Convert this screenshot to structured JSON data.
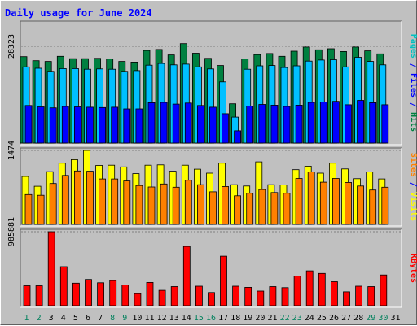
{
  "chart_data": {
    "type": "bar",
    "title": "Daily usage for June 2024",
    "categories": [
      "1",
      "2",
      "3",
      "4",
      "5",
      "6",
      "7",
      "8",
      "9",
      "10",
      "11",
      "12",
      "13",
      "14",
      "15",
      "16",
      "17",
      "18",
      "19",
      "20",
      "21",
      "22",
      "23",
      "24",
      "25",
      "26",
      "27",
      "28",
      "29",
      "30",
      "31"
    ],
    "weekend_days": [
      "1",
      "2",
      "8",
      "9",
      "15",
      "16",
      "22",
      "23",
      "29",
      "30"
    ],
    "panels": [
      {
        "id": "hits-panel",
        "max_label": "28323",
        "max_value": 28323,
        "axis_label": [
          {
            "text": "Pages",
            "color": "#00c0c0"
          },
          {
            "text": " / ",
            "color": "#0000ff"
          },
          {
            "text": "Files",
            "color": "#0000ff"
          },
          {
            "text": " / ",
            "color": "#0000ff"
          },
          {
            "text": "Hits",
            "color": "#008040"
          }
        ],
        "series": [
          {
            "name": "Hits",
            "color": "#008040",
            "values": [
              25300,
              24100,
              23900,
              25400,
              24700,
              24700,
              24800,
              24600,
              23900,
              23700,
              27100,
              27400,
              25800,
              29100,
              26300,
              24800,
              22700,
              11500,
              24600,
              25900,
              26200,
              25400,
              26900,
              28100,
              27300,
              27600,
              26800,
              28100,
              27000,
              26100,
              0
            ]
          },
          {
            "name": "Files",
            "color": "#00c0ff",
            "values": [
              22300,
              21900,
              21000,
              21800,
              21800,
              21600,
              21700,
              21600,
              21000,
              21200,
              22800,
              23300,
              22900,
              23100,
              22300,
              21700,
              17900,
              7600,
              21600,
              22600,
              22700,
              22100,
              22600,
              24000,
              24300,
              24400,
              22300,
              25100,
              23900,
              22900,
              0
            ]
          },
          {
            "name": "Pages",
            "color": "#0000ff",
            "values": [
              11000,
              10600,
              10300,
              10700,
              10600,
              10500,
              10400,
              10500,
              10000,
              10000,
              11800,
              11900,
              11400,
              11700,
              11000,
              10500,
              8600,
              3600,
              10800,
              11300,
              11100,
              10700,
              11100,
              11900,
              12000,
              12200,
              11200,
              12500,
              11800,
              11200,
              0
            ]
          }
        ]
      },
      {
        "id": "visits-panel",
        "max_label": "1474",
        "max_value": 1474,
        "axis_label": [
          {
            "text": "Sites",
            "color": "#ff8000"
          },
          {
            "text": " / ",
            "color": "#0000ff"
          },
          {
            "text": "Visits",
            "color": "#ffff00"
          }
        ],
        "series": [
          {
            "name": "Visits",
            "color": "#ffff00",
            "values": [
              955,
              760,
              1050,
              1220,
              1290,
              1474,
              1175,
              1180,
              1145,
              1010,
              1180,
              1185,
              1060,
              1180,
              1100,
              1020,
              1220,
              790,
              765,
              1245,
              790,
              785,
              1090,
              1160,
              1020,
              1220,
              1105,
              910,
              1045,
              905,
              0
            ]
          },
          {
            "name": "Sites",
            "color": "#ff8000",
            "values": [
              595,
              580,
              815,
              975,
              1065,
              1060,
              905,
              905,
              865,
              775,
              745,
              805,
              740,
              880,
              790,
              650,
              755,
              570,
              620,
              695,
              635,
              620,
              915,
              1045,
              840,
              915,
              835,
              765,
              685,
              740,
              0
            ]
          }
        ]
      },
      {
        "id": "kbytes-panel",
        "max_label": "985881",
        "max_value": 985881,
        "axis_label": [
          {
            "text": "KBytes",
            "color": "#ff0000"
          }
        ],
        "series": [
          {
            "name": "KBytes",
            "color": "#ff0000",
            "values": [
              265000,
              265000,
              985881,
              520000,
              300000,
              350000,
              305000,
              335000,
              275000,
              160000,
              310000,
              205000,
              255000,
              790000,
              260000,
              175000,
              660000,
              260000,
              245000,
              195000,
              255000,
              240000,
              395000,
              465000,
              430000,
              320000,
              185000,
              260000,
              255000,
              410000,
              0
            ]
          }
        ]
      }
    ]
  }
}
